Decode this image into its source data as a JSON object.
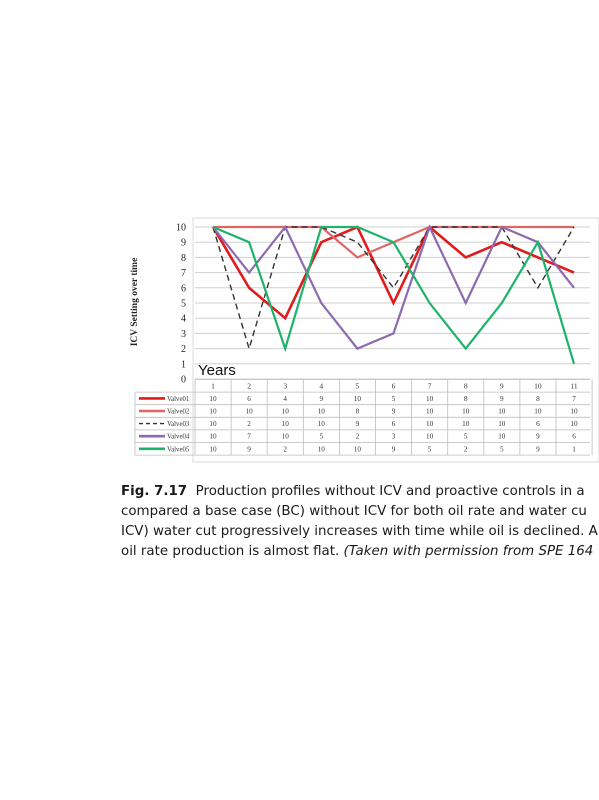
{
  "chart_data": {
    "type": "line",
    "ylabel": "ICV Setting over time",
    "xlabel": "Years",
    "categories": [
      "1",
      "2",
      "3",
      "4",
      "5",
      "6",
      "7",
      "8",
      "9",
      "10",
      "11"
    ],
    "yticks": [
      "0",
      "1",
      "2",
      "3",
      "4",
      "5",
      "6",
      "7",
      "8",
      "9",
      "10"
    ],
    "ylim": [
      0,
      10
    ],
    "grid": true,
    "legend": "data-table-below",
    "series": [
      {
        "name": "Valve01",
        "color": "#e31a1c",
        "dash": false,
        "values": [
          10,
          6,
          4,
          9,
          10,
          5,
          10,
          8,
          9,
          8,
          7
        ]
      },
      {
        "name": "Valve02",
        "color": "#e06666",
        "dash": false,
        "values": [
          10,
          10,
          10,
          10,
          8,
          9,
          10,
          10,
          10,
          10,
          10
        ]
      },
      {
        "name": "Valve03",
        "color": "#333333",
        "dash": true,
        "values": [
          10,
          2,
          10,
          10,
          9,
          6,
          10,
          10,
          10,
          6,
          10
        ]
      },
      {
        "name": "Valve04",
        "color": "#8e6bb0",
        "dash": false,
        "values": [
          10,
          7,
          10,
          5,
          2,
          3,
          10,
          5,
          10,
          9,
          6
        ]
      },
      {
        "name": "Valve05",
        "color": "#1db36b",
        "dash": false,
        "values": [
          10,
          9,
          2,
          10,
          10,
          9,
          5,
          2,
          5,
          9,
          1
        ]
      }
    ]
  },
  "caption": {
    "fig_label": "Fig. 7.17",
    "line1": "Production profiles without ICV and proactive controls in a",
    "line2": "compared a base case (BC) without ICV for both oil rate and water cu",
    "line3": "ICV) water cut progressively increases with time while oil is declined. A",
    "line4_plain": "oil rate production is almost flat. ",
    "line4_italic": "(Taken with permission from SPE 164"
  }
}
